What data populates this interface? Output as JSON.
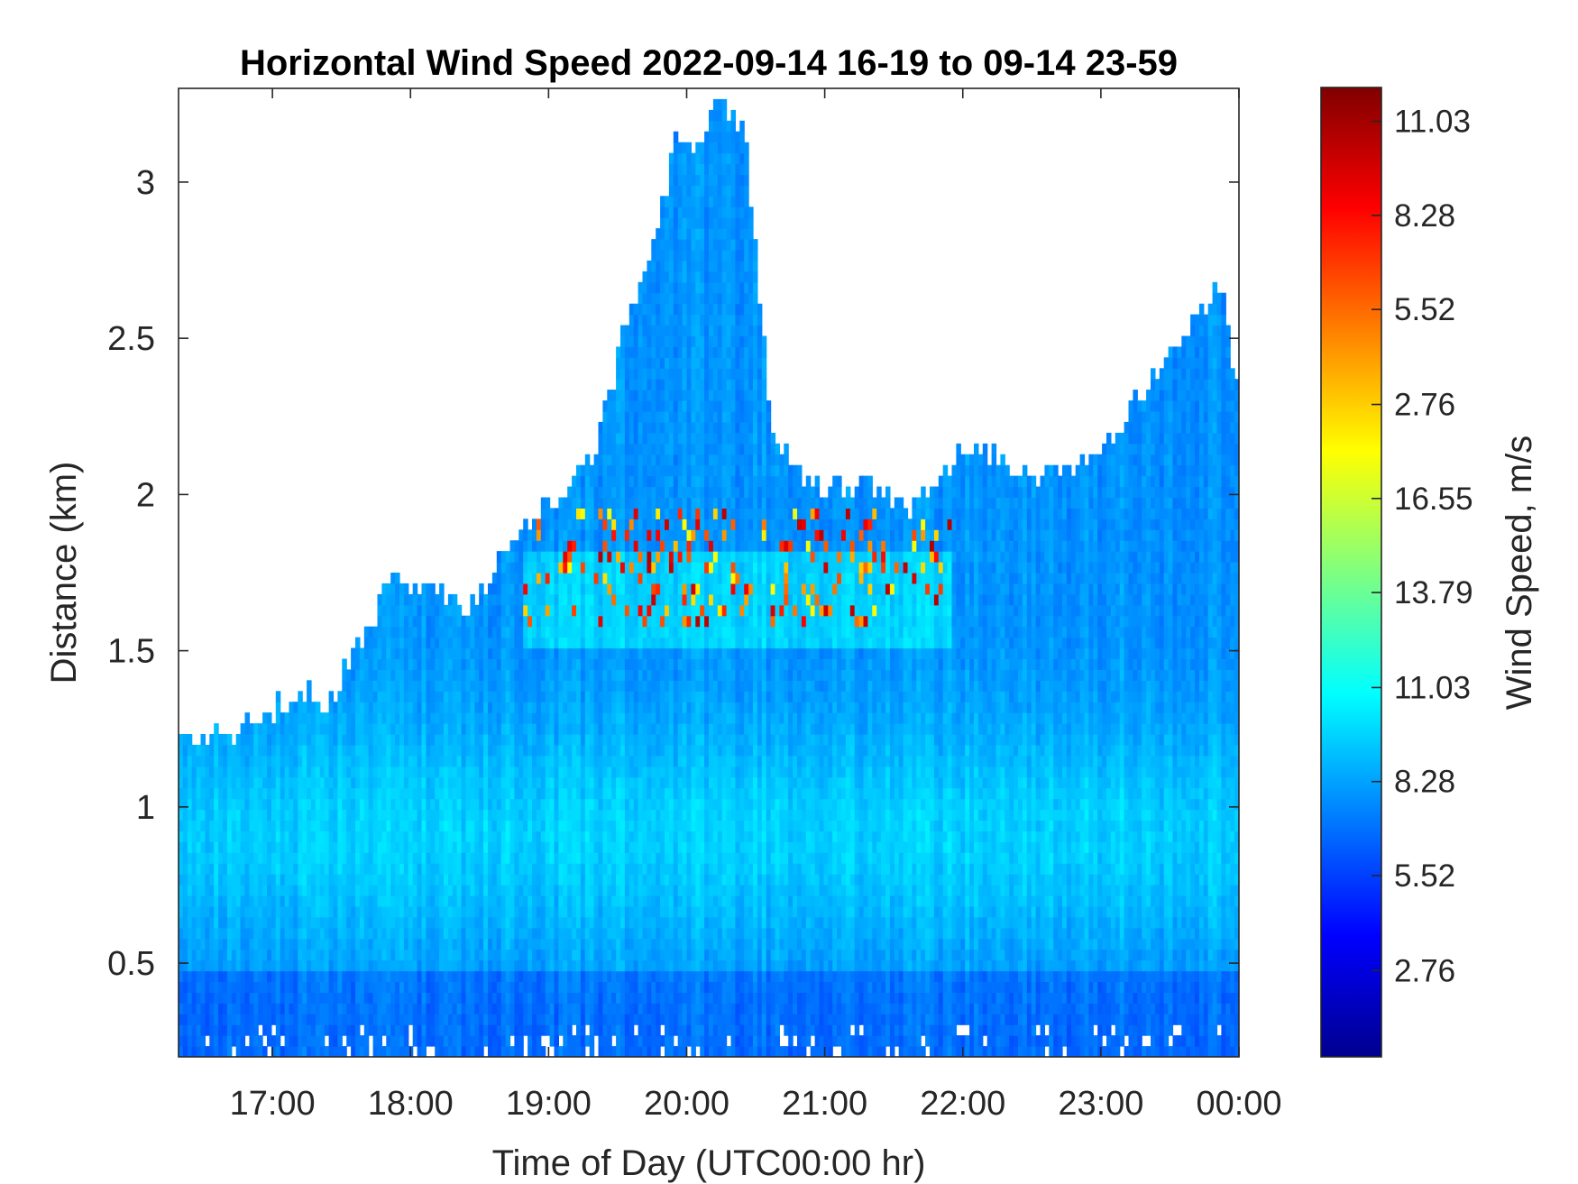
{
  "chart_data": {
    "type": "heatmap",
    "title": "Horizontal Wind Speed 2022-09-14 16-19 to 09-14 23-59",
    "xlabel": "Time of Day (UTC00:00 hr)",
    "ylabel": "Distance (km)",
    "colorbar_label": "Wind Speed, m/s",
    "colormap": "jet",
    "xlim_hours": [
      16.32,
      24.0
    ],
    "ylim_km": [
      0.2,
      3.3
    ],
    "x_ticks": [
      {
        "hour": 17,
        "label": "17:00"
      },
      {
        "hour": 18,
        "label": "18:00"
      },
      {
        "hour": 19,
        "label": "19:00"
      },
      {
        "hour": 20,
        "label": "20:00"
      },
      {
        "hour": 21,
        "label": "21:00"
      },
      {
        "hour": 22,
        "label": "22:00"
      },
      {
        "hour": 23,
        "label": "23:00"
      },
      {
        "hour": 24,
        "label": "00:00"
      }
    ],
    "y_ticks": [
      {
        "value": 0.5,
        "label": "0.5"
      },
      {
        "value": 1,
        "label": "1"
      },
      {
        "value": 1.5,
        "label": "1.5"
      },
      {
        "value": 2,
        "label": "2"
      },
      {
        "value": 2.5,
        "label": "2.5"
      },
      {
        "value": 3,
        "label": "3"
      }
    ],
    "colorbar_ticks": [
      {
        "label": "11.03",
        "level": 0.965
      },
      {
        "label": "8.28",
        "level": 0.868
      },
      {
        "label": "5.52",
        "level": 0.771
      },
      {
        "label": "2.76",
        "level": 0.673
      },
      {
        "label": "16.55",
        "level": 0.576
      },
      {
        "label": "13.79",
        "level": 0.479
      },
      {
        "label": "11.03",
        "level": 0.381
      },
      {
        "label": "8.28",
        "level": 0.284
      },
      {
        "label": "5.52",
        "level": 0.187
      },
      {
        "label": "2.76",
        "level": 0.089
      }
    ],
    "data_top_km": [
      {
        "hour": 16.32,
        "top": 1.2
      },
      {
        "hour": 16.7,
        "top": 1.22
      },
      {
        "hour": 17.0,
        "top": 1.3
      },
      {
        "hour": 17.2,
        "top": 1.36
      },
      {
        "hour": 17.4,
        "top": 1.3
      },
      {
        "hour": 17.6,
        "top": 1.52
      },
      {
        "hour": 17.85,
        "top": 1.7
      },
      {
        "hour": 18.15,
        "top": 1.68
      },
      {
        "hour": 18.4,
        "top": 1.6
      },
      {
        "hour": 18.7,
        "top": 1.84
      },
      {
        "hour": 19.0,
        "top": 1.95
      },
      {
        "hour": 19.3,
        "top": 2.1
      },
      {
        "hour": 19.5,
        "top": 2.45
      },
      {
        "hour": 19.75,
        "top": 2.8
      },
      {
        "hour": 19.9,
        "top": 3.1
      },
      {
        "hour": 20.05,
        "top": 3.1
      },
      {
        "hour": 20.2,
        "top": 3.25
      },
      {
        "hour": 20.4,
        "top": 3.15
      },
      {
        "hour": 20.6,
        "top": 2.2
      },
      {
        "hour": 20.8,
        "top": 2.05
      },
      {
        "hour": 21.0,
        "top": 2.0
      },
      {
        "hour": 21.3,
        "top": 2.0
      },
      {
        "hour": 21.6,
        "top": 1.95
      },
      {
        "hour": 21.85,
        "top": 2.05
      },
      {
        "hour": 22.1,
        "top": 2.15
      },
      {
        "hour": 22.4,
        "top": 2.05
      },
      {
        "hour": 22.8,
        "top": 2.05
      },
      {
        "hour": 23.1,
        "top": 2.2
      },
      {
        "hour": 23.35,
        "top": 2.35
      },
      {
        "hour": 23.6,
        "top": 2.5
      },
      {
        "hour": 23.85,
        "top": 2.65
      },
      {
        "hour": 24.0,
        "top": 2.25
      }
    ],
    "high_speed_band_km": [
      1.55,
      1.95
    ],
    "high_speed_band_hours": [
      18.8,
      21.9
    ]
  }
}
